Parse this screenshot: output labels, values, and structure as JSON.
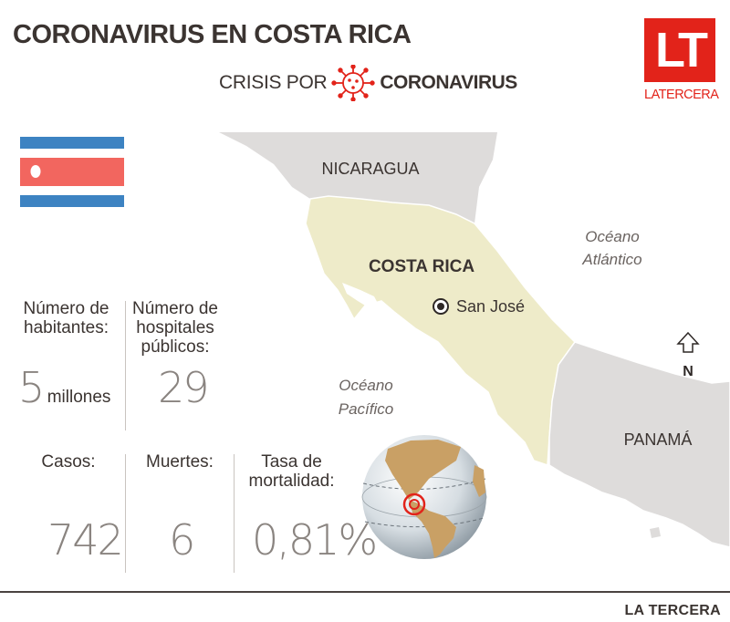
{
  "title": "CORONAVIRUS EN COSTA RICA",
  "subtitle": {
    "prefix": "CRISIS POR",
    "suffix": "CORONAVIRUS"
  },
  "logo": {
    "mark": "LT",
    "name": "LATERCERA"
  },
  "map": {
    "country": "COSTA RICA",
    "neighbors": [
      "NICARAGUA",
      "PANAMÁ"
    ],
    "capital": "San José",
    "atlantic": [
      "Océano",
      "Atlántico"
    ],
    "pacific": [
      "Océano",
      "Pacífico"
    ],
    "north": "N"
  },
  "stats": {
    "habitantes": {
      "label": [
        "Número de",
        "habitantes:"
      ],
      "value": "5",
      "unit": "millones"
    },
    "hospitales": {
      "label": [
        "Número de",
        "hospitales",
        "públicos:"
      ],
      "value": "29"
    },
    "casos": {
      "label": "Casos:",
      "value": "742"
    },
    "muertes": {
      "label": "Muertes:",
      "value": "6"
    },
    "tasa": {
      "label": [
        "Tasa de",
        "mortalidad:"
      ],
      "value": "0,81%"
    }
  },
  "credit": "LA TERCERA",
  "colors": {
    "brand_red": "#e2231a",
    "land": "#dedcdb",
    "costa_rica": "#eeebc9",
    "flag_blue": "#3d83c2",
    "flag_red": "#f2665f"
  }
}
